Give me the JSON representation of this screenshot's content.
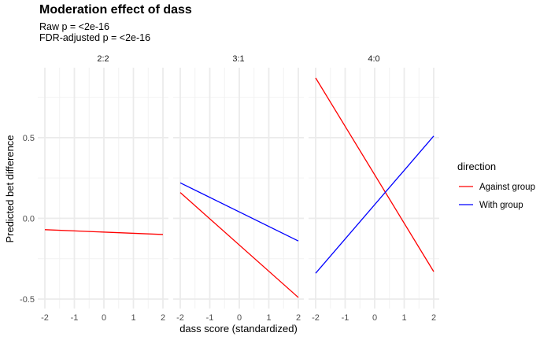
{
  "chart_data": {
    "type": "line",
    "title": "Moderation effect of dass",
    "subtitle_lines": [
      "Raw p = <2e-16",
      "FDR-adjusted p = <2e-16"
    ],
    "xlabel": "dass score (standardized)",
    "ylabel": "Predicted bet difference",
    "xlim": [
      -2,
      2
    ],
    "ylim": [
      -0.5,
      0.87
    ],
    "x_ticks": [
      -2,
      -1,
      0,
      1,
      2
    ],
    "y_ticks": [
      -0.5,
      0.0,
      0.5
    ],
    "y_tick_labels": [
      "-0.5",
      "0.0",
      "0.5"
    ],
    "grid": true,
    "legend_position": "right",
    "legend_title": "direction",
    "series_styles": [
      {
        "name": "Against group",
        "color": "#ff0000"
      },
      {
        "name": "With group",
        "color": "#0000ff"
      }
    ],
    "facets": [
      {
        "label": "2:2",
        "series": [
          {
            "name": "Against group",
            "x": [
              -2,
              2
            ],
            "y": [
              -0.07,
              -0.1
            ]
          }
        ]
      },
      {
        "label": "3:1",
        "series": [
          {
            "name": "Against group",
            "x": [
              -2,
              2
            ],
            "y": [
              0.16,
              -0.49
            ]
          },
          {
            "name": "With group",
            "x": [
              -2,
              2
            ],
            "y": [
              0.22,
              -0.14
            ]
          }
        ]
      },
      {
        "label": "4:0",
        "series": [
          {
            "name": "Against group",
            "x": [
              -2,
              2
            ],
            "y": [
              0.87,
              -0.33
            ]
          },
          {
            "name": "With group",
            "x": [
              -2,
              2
            ],
            "y": [
              -0.34,
              0.51
            ]
          }
        ]
      }
    ]
  }
}
